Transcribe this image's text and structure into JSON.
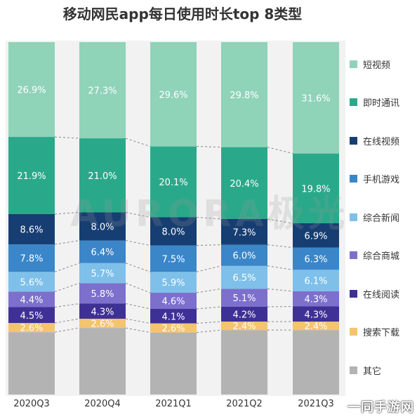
{
  "title": "移动网民app每日使用时长top 8类型",
  "watermark_bg": "AURORA极光",
  "watermark_corner": "一同手游网",
  "chart_data": {
    "type": "bar",
    "stacked": true,
    "categories": [
      "2020Q3",
      "2020Q4",
      "2021Q1",
      "2021Q2",
      "2021Q3"
    ],
    "series": [
      {
        "name": "其它",
        "color": "#b3b3b3",
        "values": [
          null,
          null,
          null,
          null,
          null
        ]
      },
      {
        "name": "搜索下载",
        "color": "#f5c46e",
        "values": [
          2.6,
          2.6,
          2.6,
          2.4,
          2.4
        ]
      },
      {
        "name": "在线阅读",
        "color": "#3e3195",
        "values": [
          4.5,
          4.3,
          4.1,
          4.2,
          4.3
        ]
      },
      {
        "name": "综合商城",
        "color": "#7d6fcc",
        "values": [
          4.4,
          5.8,
          4.6,
          5.1,
          4.3
        ]
      },
      {
        "name": "综合新闻",
        "color": "#7ec0e9",
        "values": [
          5.6,
          5.7,
          5.9,
          6.5,
          6.1
        ]
      },
      {
        "name": "手机游戏",
        "color": "#3a86c8",
        "values": [
          7.8,
          6.4,
          7.5,
          6.0,
          6.3
        ]
      },
      {
        "name": "在线视频",
        "color": "#173e72",
        "values": [
          8.6,
          8.0,
          8.0,
          7.3,
          6.9
        ]
      },
      {
        "name": "即时通讯",
        "color": "#2aa98a",
        "values": [
          21.9,
          21.0,
          20.1,
          20.4,
          19.8
        ]
      },
      {
        "name": "短视频",
        "color": "#8fd3b8",
        "values": [
          26.9,
          27.3,
          29.6,
          29.8,
          31.6
        ]
      }
    ],
    "value_labels": [
      [
        "",
        "2.6%",
        "4.5%",
        "4.4%",
        "5.6%",
        "7.8%",
        "8.6%",
        "21.9%",
        "26.9%"
      ],
      [
        "",
        "2.6%",
        "4.3%",
        "5.8%",
        "5.7%",
        "6.4%",
        "8.0%",
        "21.0%",
        "27.3%"
      ],
      [
        "",
        "2.6%",
        "4.1%",
        "4.6%",
        "5.9%",
        "7.5%",
        "8.0%",
        "20.1%",
        "29.6%"
      ],
      [
        "",
        "2.4%",
        "4.2%",
        "5.1%",
        "6.5%",
        "6.0%",
        "7.3%",
        "20.4%",
        "29.8%"
      ],
      [
        "",
        "2.4%",
        "4.3%",
        "4.3%",
        "6.1%",
        "6.3%",
        "6.9%",
        "19.8%",
        "31.6%"
      ]
    ],
    "unit": "%",
    "legend_position": "right",
    "connector_lines": "dashed",
    "legend_order": [
      "短视频",
      "即时通讯",
      "在线视频",
      "手机游戏",
      "综合新闻",
      "综合商城",
      "在线阅读",
      "搜索下载",
      "其它"
    ]
  }
}
